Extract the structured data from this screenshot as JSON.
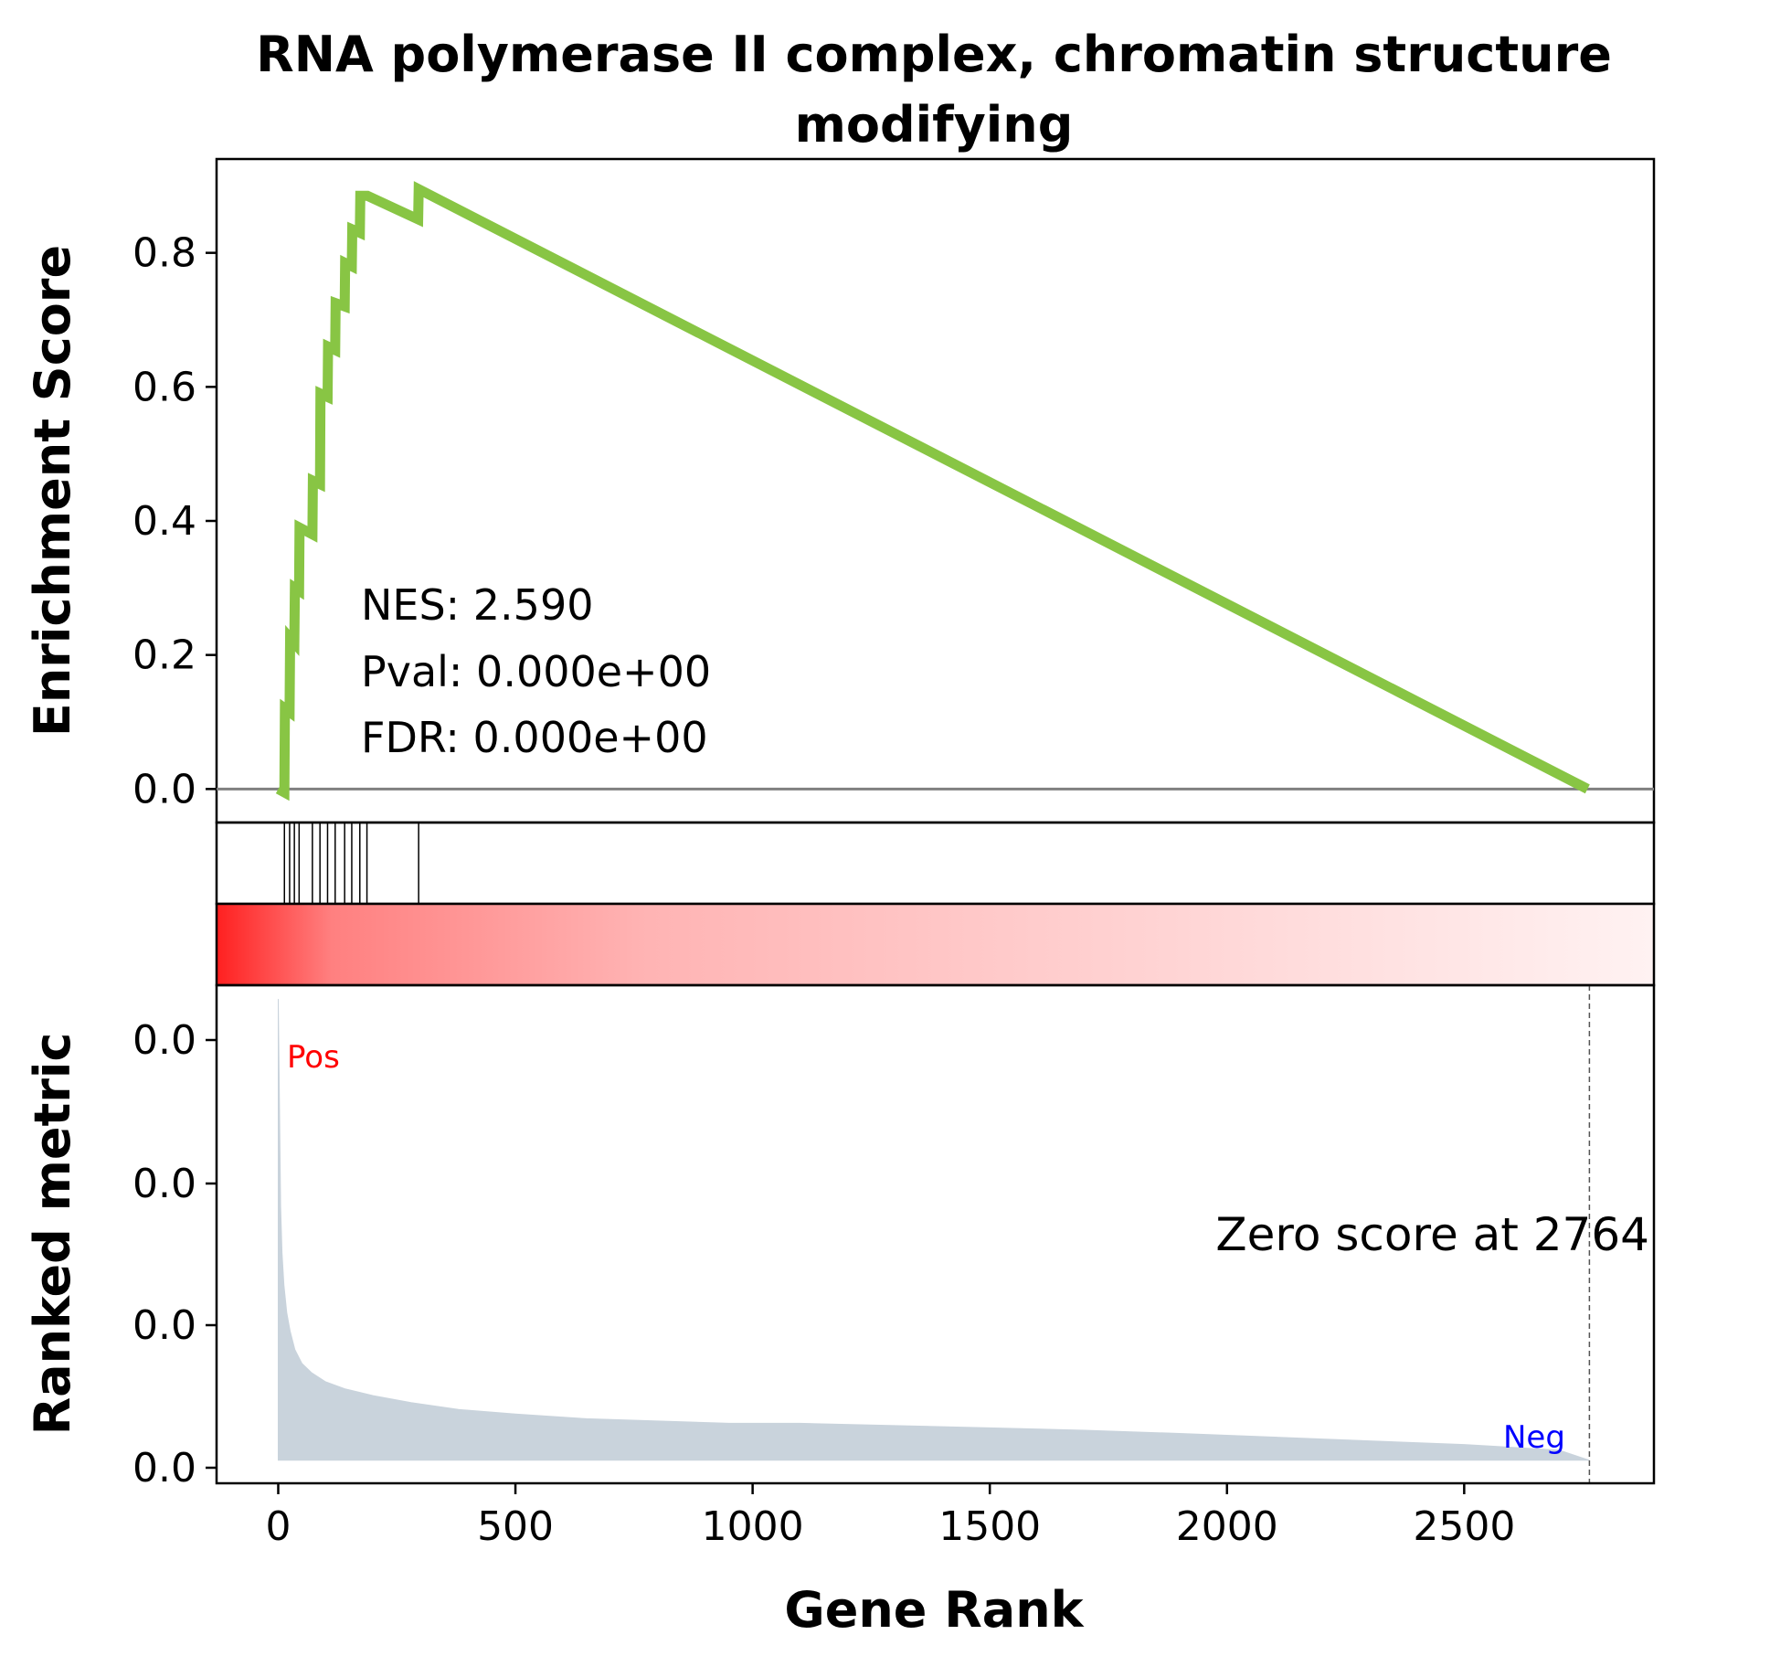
{
  "chart_data": {
    "type": "line",
    "title_line1": "RNA polymerase II complex, chromatin structure",
    "title_line2": "modifying",
    "xlabel": "Gene Rank",
    "ylabel_top": "Enrichment Score",
    "ylabel_bottom": "Ranked metric",
    "xlim": [
      -130,
      2900
    ],
    "x_ticks": [
      0,
      500,
      1000,
      1500,
      2000,
      2500
    ],
    "x_tick_labels": [
      "0",
      "500",
      "1000",
      "1500",
      "2000",
      "2500"
    ],
    "es_ylim": [
      -0.05,
      0.94
    ],
    "es_ticks": [
      0.0,
      0.2,
      0.4,
      0.6,
      0.8
    ],
    "es_tick_labels": [
      "0.0",
      "0.2",
      "0.4",
      "0.6",
      "0.8"
    ],
    "es_curve": {
      "x": [
        0,
        13,
        14,
        24,
        25,
        34,
        35,
        44,
        45,
        72,
        73,
        88,
        89,
        104,
        105,
        120,
        121,
        140,
        141,
        155,
        156,
        172,
        173,
        187,
        188,
        295,
        296,
        2760
      ],
      "y": [
        0.0,
        -0.005,
        0.12,
        0.115,
        0.225,
        0.218,
        0.3,
        0.296,
        0.39,
        0.38,
        0.46,
        0.455,
        0.59,
        0.585,
        0.66,
        0.655,
        0.725,
        0.72,
        0.785,
        0.78,
        0.835,
        0.83,
        0.885,
        0.885,
        0.885,
        0.85,
        0.895,
        0.0
      ]
    },
    "hits": [
      13,
      24,
      34,
      44,
      72,
      88,
      104,
      120,
      140,
      155,
      172,
      187,
      296
    ],
    "stats": {
      "nes": "NES: 2.590",
      "pval": "Pval: 0.000e+00",
      "fdr": "FDR: 0.000e+00"
    },
    "rank_ylim": [
      -0.05,
      1.03
    ],
    "rank_tick_labels": [
      "0.0",
      "0.0",
      "0.0",
      "0.0"
    ],
    "rank_metric": {
      "x": [
        0,
        5,
        8,
        12,
        18,
        25,
        35,
        50,
        70,
        100,
        140,
        200,
        280,
        380,
        500,
        650,
        800,
        950,
        1100,
        1300,
        1500,
        1700,
        1900,
        2100,
        2300,
        2500,
        2700,
        2764
      ],
      "y": [
        1.0,
        0.55,
        0.45,
        0.38,
        0.32,
        0.28,
        0.24,
        0.21,
        0.19,
        0.17,
        0.155,
        0.14,
        0.125,
        0.11,
        0.1,
        0.09,
        0.085,
        0.08,
        0.08,
        0.075,
        0.07,
        0.065,
        0.058,
        0.05,
        0.042,
        0.034,
        0.022,
        0.0
      ]
    },
    "zero_score_rank": 2764,
    "zero_score_label": "Zero score at 2764",
    "pos_label": "Pos",
    "neg_label": "Neg",
    "colors": {
      "es_line": "#88c544",
      "baseline": "#808080",
      "hit": "#000000",
      "metric_fill": "#c9d3dc",
      "heat_start": "#ff2020",
      "heat_end": "#fff2f2",
      "pos": "#ff0000",
      "neg": "#0000ff"
    }
  }
}
